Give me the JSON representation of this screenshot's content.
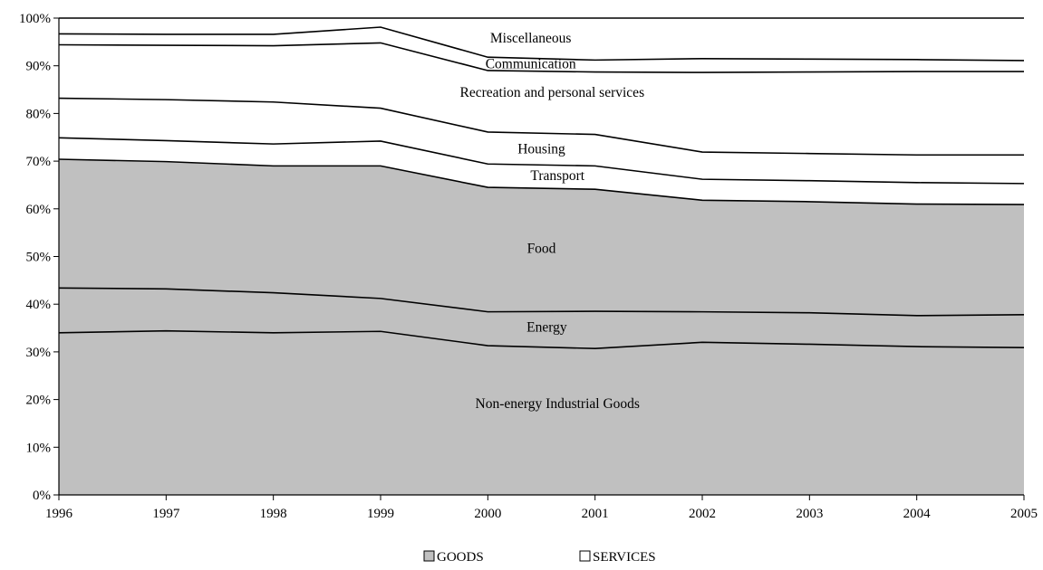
{
  "chart_data": {
    "type": "area",
    "stacked": true,
    "percent_scale": true,
    "x": [
      "1996",
      "1997",
      "1998",
      "1999",
      "2000",
      "2001",
      "2002",
      "2003",
      "2004",
      "2005"
    ],
    "ylim": [
      0,
      100
    ],
    "yticks": [
      0,
      10,
      20,
      30,
      40,
      50,
      60,
      70,
      80,
      90,
      100
    ],
    "ytick_labels": [
      "0%",
      "10%",
      "20%",
      "30%",
      "40%",
      "50%",
      "60%",
      "70%",
      "80%",
      "90%",
      "100%"
    ],
    "grid": false,
    "legend_position": "bottom",
    "legend": [
      {
        "label": "GOODS",
        "color": "#c0c0c0"
      },
      {
        "label": "SERVICES",
        "color": "#ffffff"
      }
    ],
    "boundaries": [
      {
        "name": "Non-energy Industrial Goods",
        "group": "GOODS",
        "values": [
          34.0,
          34.4,
          34.0,
          34.3,
          31.3,
          30.7,
          32.0,
          31.6,
          31.1,
          30.9
        ]
      },
      {
        "name": "Energy",
        "group": "GOODS",
        "values": [
          43.4,
          43.2,
          42.4,
          41.2,
          38.4,
          38.5,
          38.4,
          38.2,
          37.6,
          37.8
        ]
      },
      {
        "name": "Food",
        "group": "GOODS",
        "values": [
          70.4,
          69.9,
          69.0,
          69.0,
          64.5,
          64.1,
          61.8,
          61.5,
          61.0,
          60.9
        ]
      },
      {
        "name": "Transport",
        "group": "SERVICES",
        "values": [
          74.9,
          74.3,
          73.6,
          74.2,
          69.4,
          69.0,
          66.2,
          65.9,
          65.5,
          65.3
        ]
      },
      {
        "name": "Housing",
        "group": "SERVICES",
        "values": [
          83.2,
          82.9,
          82.4,
          81.1,
          76.1,
          75.6,
          71.9,
          71.6,
          71.3,
          71.3
        ]
      },
      {
        "name": "Recreation and personal services",
        "group": "SERVICES",
        "values": [
          94.4,
          94.3,
          94.2,
          94.8,
          89.0,
          88.7,
          88.6,
          88.7,
          88.8,
          88.8
        ]
      },
      {
        "name": "Communication",
        "group": "SERVICES",
        "values": [
          96.7,
          96.6,
          96.6,
          98.1,
          91.8,
          91.2,
          91.5,
          91.4,
          91.3,
          91.1
        ]
      },
      {
        "name": "Miscellaneous",
        "group": "SERVICES",
        "values": [
          100,
          100,
          100,
          100,
          100,
          100,
          100,
          100,
          100,
          100
        ]
      }
    ],
    "band_labels": [
      {
        "text": "Miscellaneous",
        "x": 2000.4,
        "y": 95.8
      },
      {
        "text": "Communication",
        "x": 2000.4,
        "y": 90.4
      },
      {
        "text": "Recreation and personal services",
        "x": 2000.6,
        "y": 84.4
      },
      {
        "text": "Housing",
        "x": 2000.5,
        "y": 72.6
      },
      {
        "text": "Transport",
        "x": 2000.65,
        "y": 67.0
      },
      {
        "text": "Food",
        "x": 2000.5,
        "y": 51.7
      },
      {
        "text": "Energy",
        "x": 2000.55,
        "y": 35.2
      },
      {
        "text": "Non-energy Industrial Goods",
        "x": 2000.65,
        "y": 19.2
      }
    ],
    "colors": {
      "goods_fill": "#c0c0c0",
      "services_fill": "#ffffff",
      "line": "#000000"
    }
  }
}
